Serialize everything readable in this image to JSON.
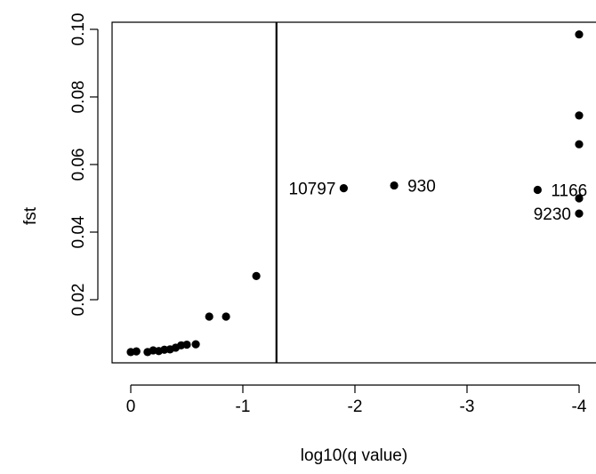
{
  "chart_data": {
    "type": "scatter",
    "title": "",
    "xlabel": "log10(q value)",
    "ylabel": "fst",
    "xlim": [
      0.1,
      -4.3
    ],
    "ylim": [
      0.001,
      0.103
    ],
    "x_ticks": [
      0,
      -1,
      -2,
      -3,
      -4
    ],
    "x_tick_labels": [
      "0",
      "-1",
      "-2",
      "-3",
      "-4"
    ],
    "y_ticks": [
      0.02,
      0.04,
      0.06,
      0.08,
      0.1
    ],
    "y_tick_labels": [
      "0.02",
      "0.04",
      "0.06",
      "0.08",
      "0.10"
    ],
    "threshold_line": {
      "axis": "x",
      "value": -1.3
    },
    "grid": false,
    "legend": "none",
    "points": [
      {
        "x": 0.0,
        "y": 0.0045
      },
      {
        "x": -0.05,
        "y": 0.0047
      },
      {
        "x": -0.15,
        "y": 0.0045
      },
      {
        "x": -0.2,
        "y": 0.005
      },
      {
        "x": -0.25,
        "y": 0.0048
      },
      {
        "x": -0.3,
        "y": 0.0052
      },
      {
        "x": -0.35,
        "y": 0.0053
      },
      {
        "x": -0.4,
        "y": 0.0058
      },
      {
        "x": -0.45,
        "y": 0.0065
      },
      {
        "x": -0.5,
        "y": 0.0067
      },
      {
        "x": -0.58,
        "y": 0.0068
      },
      {
        "x": -0.7,
        "y": 0.015
      },
      {
        "x": -0.85,
        "y": 0.015
      },
      {
        "x": -1.12,
        "y": 0.027
      },
      {
        "x": -1.9,
        "y": 0.053,
        "label": "10797",
        "label_side": "left"
      },
      {
        "x": -2.35,
        "y": 0.0538,
        "label": "930",
        "label_side": "right"
      },
      {
        "x": -3.63,
        "y": 0.0525,
        "label": "1166",
        "label_side": "right"
      },
      {
        "x": -4.0,
        "y": 0.0455,
        "label": "9230",
        "label_side": "left"
      },
      {
        "x": -4.0,
        "y": 0.05,
        "label": "",
        "label_side": "right"
      },
      {
        "x": -4.0,
        "y": 0.066,
        "label": "",
        "label_side": "right"
      },
      {
        "x": -4.0,
        "y": 0.0745,
        "label": "",
        "label_side": "right"
      },
      {
        "x": -4.0,
        "y": 0.0985,
        "label": "",
        "label_side": "right"
      }
    ]
  }
}
